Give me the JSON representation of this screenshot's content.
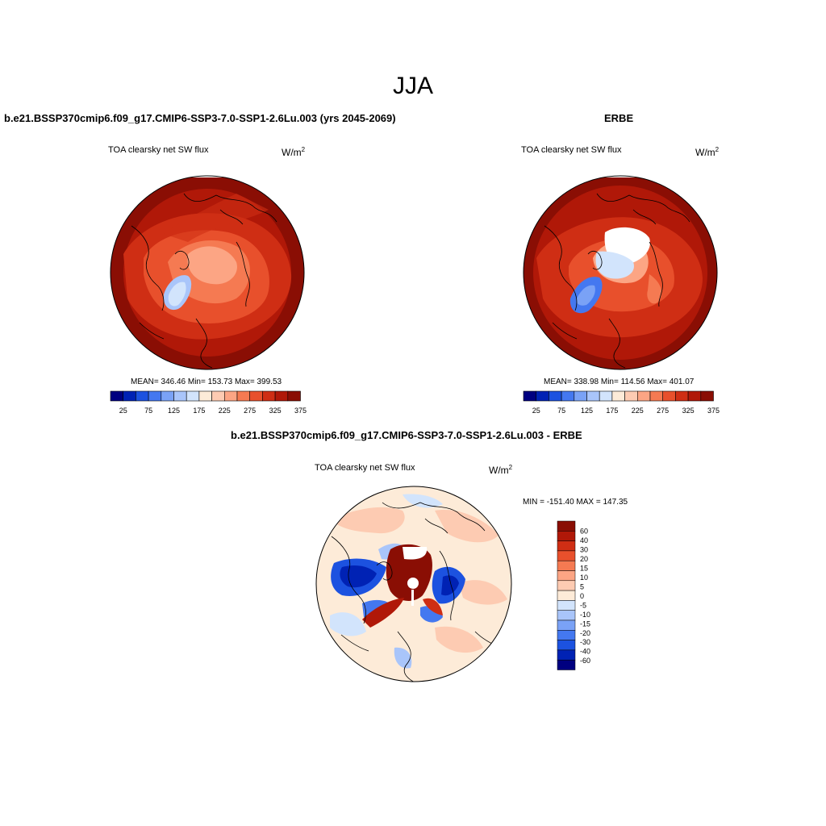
{
  "season": "JJA",
  "panels": {
    "model": {
      "title": "b.e21.BSSP370cmip6.f09_g17.CMIP6-SSP3-7.0-SSP1-2.6Lu.003 (yrs 2045-2069)",
      "variable": "TOA clearsky net SW flux",
      "units_base": "W/m",
      "units_exp": "2",
      "stats": "MEAN= 346.46  Min= 153.73  Max= 399.53"
    },
    "obs": {
      "title": "ERBE",
      "variable": "TOA clearsky net SW flux",
      "units_base": "W/m",
      "units_exp": "2",
      "stats": "MEAN= 338.98  Min= 114.56  Max= 401.07"
    },
    "diff": {
      "title": "b.e21.BSSP370cmip6.f09_g17.CMIP6-SSP3-7.0-SSP1-2.6Lu.003 - ERBE",
      "variable": "TOA clearsky net SW flux",
      "units_base": "W/m",
      "units_exp": "2",
      "stats": "MIN = -151.40 MAX = 147.35"
    }
  },
  "abs_colorbar": {
    "colors": [
      "#000080",
      "#0022b4",
      "#1c52e0",
      "#4478f0",
      "#7aa2f6",
      "#a9c5fa",
      "#d2e4fc",
      "#fdebd8",
      "#fdcbb2",
      "#fca584",
      "#f57a52",
      "#e8502c",
      "#cf2e14",
      "#b01808",
      "#8a0e04"
    ],
    "tick_labels": [
      "25",
      "75",
      "125",
      "175",
      "225",
      "275",
      "325",
      "375"
    ]
  },
  "diff_colorbar": {
    "colors": [
      "#8a0e04",
      "#b01808",
      "#cf2e14",
      "#e8502c",
      "#f57a52",
      "#fca584",
      "#fdcbb2",
      "#fdebd8",
      "#d2e4fc",
      "#a9c5fa",
      "#7aa2f6",
      "#4478f0",
      "#1c52e0",
      "#0022b4",
      "#000080"
    ],
    "tick_labels": [
      "60",
      "40",
      "30",
      "20",
      "15",
      "10",
      "5",
      "0",
      "-5",
      "-10",
      "-15",
      "-20",
      "-30",
      "-40",
      "-60"
    ]
  }
}
